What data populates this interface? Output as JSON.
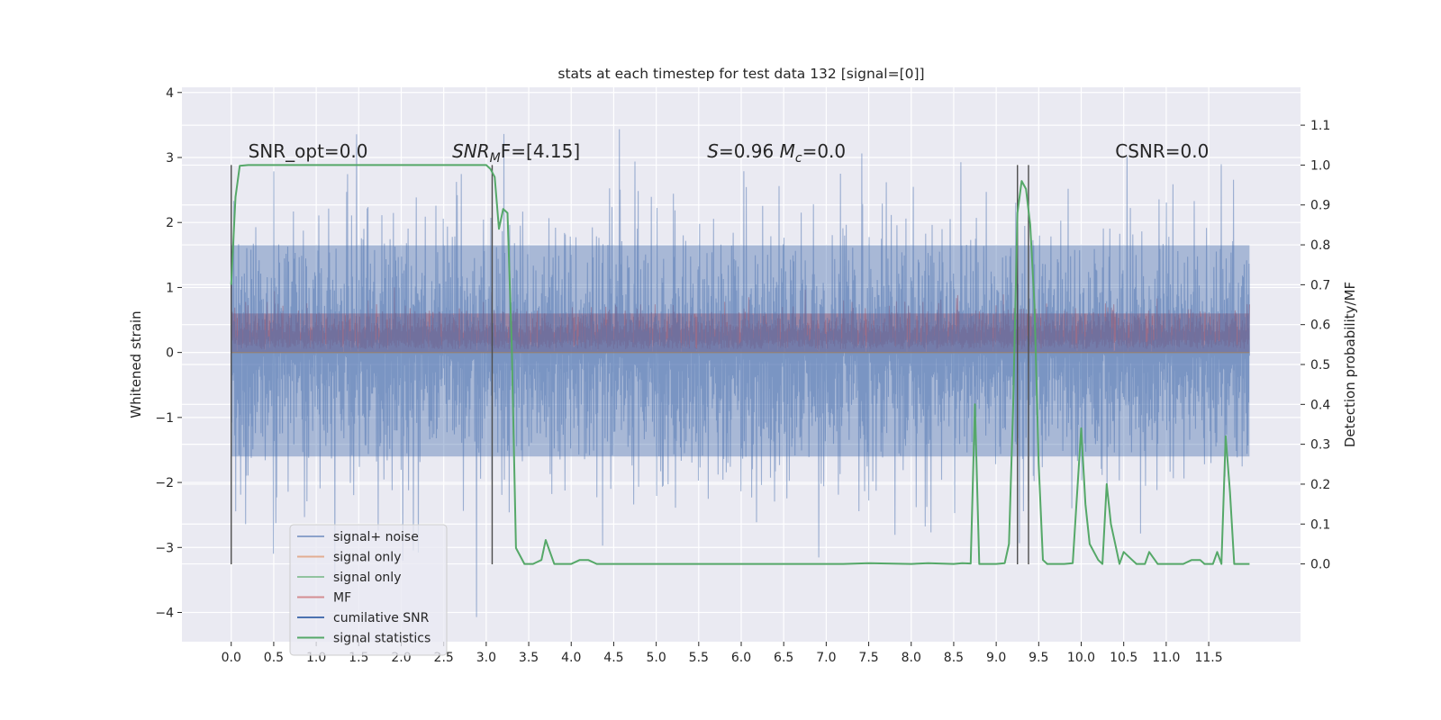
{
  "chart_data": {
    "type": "line",
    "title": "stats at each timestep for test data 132 [signal=[0]]",
    "xlabel": "",
    "ylabel": "Whitened strain",
    "y2label": "Detection probability/MF",
    "xlim": [
      -0.58,
      12.58
    ],
    "ylim": [
      -4.45,
      4.08
    ],
    "y2lim": [
      -0.195,
      1.195
    ],
    "x_ticks": [
      0.0,
      0.5,
      1.0,
      1.5,
      2.0,
      2.5,
      3.0,
      3.5,
      4.0,
      4.5,
      5.0,
      5.5,
      6.0,
      6.5,
      7.0,
      7.5,
      8.0,
      8.5,
      9.0,
      9.5,
      10.0,
      10.5,
      11.0,
      11.5
    ],
    "x_tick_labels": [
      "0.0",
      "0.5",
      "1.0",
      "1.5",
      "2.0",
      "2.5",
      "3.0",
      "3.5",
      "4.0",
      "4.5",
      "5.0",
      "5.5",
      "6.0",
      "6.5",
      "7.0",
      "7.5",
      "8.0",
      "8.5",
      "9.0",
      "9.5",
      "10.0",
      "10.5",
      "11.0",
      "11.5"
    ],
    "y_ticks": [
      -4,
      -3,
      -2,
      -1,
      0,
      1,
      2,
      3,
      4
    ],
    "y_tick_labels": [
      "−4",
      "−3",
      "−2",
      "−1",
      "0",
      "1",
      "2",
      "3",
      "4"
    ],
    "y2_ticks": [
      0.0,
      0.1,
      0.2,
      0.3,
      0.4,
      0.5,
      0.6,
      0.7,
      0.8,
      0.9,
      1.0,
      1.1
    ],
    "y2_tick_labels": [
      "0.0",
      "0.1",
      "0.2",
      "0.3",
      "0.4",
      "0.5",
      "0.6",
      "0.7",
      "0.8",
      "0.9",
      "1.0",
      "1.1"
    ],
    "grid": true,
    "legend_position": "lower-left",
    "series": [
      {
        "name": "signal+ noise",
        "color": "#4c72b0",
        "axis": "left",
        "kind": "noise",
        "x_range": [
          0,
          11.98
        ],
        "amplitude_typical": 1.6,
        "amplitude_max": 3.7
      },
      {
        "name": "signal only",
        "color": "#dd8452",
        "axis": "left",
        "kind": "flat",
        "value": 0
      },
      {
        "name": "signal only",
        "color": "#55a868",
        "axis": "left",
        "kind": "flat",
        "value": 0
      },
      {
        "name": "MF",
        "color": "#c44e52",
        "axis": "left",
        "kind": "band",
        "x_range": [
          0,
          11.98
        ],
        "low": 0.0,
        "typical_high": 0.75,
        "max": 1.0
      },
      {
        "name": "cumilative SNR",
        "color": "#4c72b0",
        "axis": "left",
        "kind": "none"
      },
      {
        "name": "signal statistics",
        "color": "#55a868",
        "axis": "right",
        "x": [
          0.0,
          0.05,
          0.1,
          0.2,
          0.5,
          1.0,
          1.5,
          2.0,
          2.5,
          2.9,
          3.0,
          3.05,
          3.1,
          3.15,
          3.2,
          3.25,
          3.3,
          3.35,
          3.45,
          3.55,
          3.65,
          3.7,
          3.8,
          3.9,
          4.0,
          4.1,
          4.2,
          4.3,
          4.5,
          5.0,
          5.5,
          6.0,
          6.5,
          7.0,
          7.2,
          7.5,
          8.0,
          8.2,
          8.5,
          8.6,
          8.7,
          8.75,
          8.8,
          9.0,
          9.1,
          9.15,
          9.2,
          9.25,
          9.3,
          9.35,
          9.4,
          9.45,
          9.5,
          9.55,
          9.6,
          9.65,
          9.7,
          9.8,
          9.9,
          10.0,
          10.05,
          10.1,
          10.2,
          10.25,
          10.3,
          10.35,
          10.4,
          10.45,
          10.5,
          10.6,
          10.65,
          10.7,
          10.75,
          10.8,
          10.9,
          11.0,
          11.2,
          11.3,
          11.4,
          11.45,
          11.5,
          11.55,
          11.6,
          11.65,
          11.7,
          11.75,
          11.8,
          11.9,
          11.98
        ],
        "values": [
          0.7,
          0.92,
          0.998,
          1.0,
          1.0,
          1.0,
          1.0,
          1.0,
          1.0,
          1.0,
          1.0,
          0.99,
          0.97,
          0.84,
          0.89,
          0.88,
          0.55,
          0.04,
          0.0,
          0.0,
          0.01,
          0.06,
          0.0,
          0.0,
          0.0,
          0.01,
          0.01,
          0.0,
          0.0,
          0.0,
          0.0,
          0.0,
          0.0,
          0.0,
          0.0,
          0.002,
          0.0,
          0.002,
          0.0,
          0.002,
          0.001,
          0.4,
          0.0,
          0.0,
          0.002,
          0.05,
          0.4,
          0.88,
          0.96,
          0.94,
          0.85,
          0.65,
          0.25,
          0.01,
          0.0,
          0.0,
          0.0,
          0.0,
          0.002,
          0.34,
          0.15,
          0.05,
          0.01,
          0.0,
          0.2,
          0.1,
          0.05,
          0.0,
          0.03,
          0.01,
          0.0,
          0.0,
          0.0,
          0.03,
          0.0,
          0.0,
          0.0,
          0.01,
          0.01,
          0.0,
          0.0,
          0.0,
          0.03,
          0.0,
          0.32,
          0.18,
          0.0,
          0.0,
          0.0
        ]
      }
    ],
    "vertical_lines": [
      0.0,
      3.07,
      9.25,
      9.38
    ],
    "annotations": [
      {
        "id": "snr_opt",
        "text": "SNR_opt=0.0",
        "x": 0.2,
        "y": 3.0
      },
      {
        "id": "snr_mf",
        "text": "SNR",
        "sub": "M",
        "rest": "F=[4.15]",
        "x": 2.6,
        "y": 3.0
      },
      {
        "id": "s_mc",
        "text": "S",
        "rest1": "=0.96   ",
        "text2": "M",
        "sub": "c",
        "rest2": "=0.0",
        "x": 5.6,
        "y": 3.0
      },
      {
        "id": "csnr",
        "text": "CSNR=0.0",
        "x": 10.4,
        "y": 3.0
      }
    ]
  }
}
